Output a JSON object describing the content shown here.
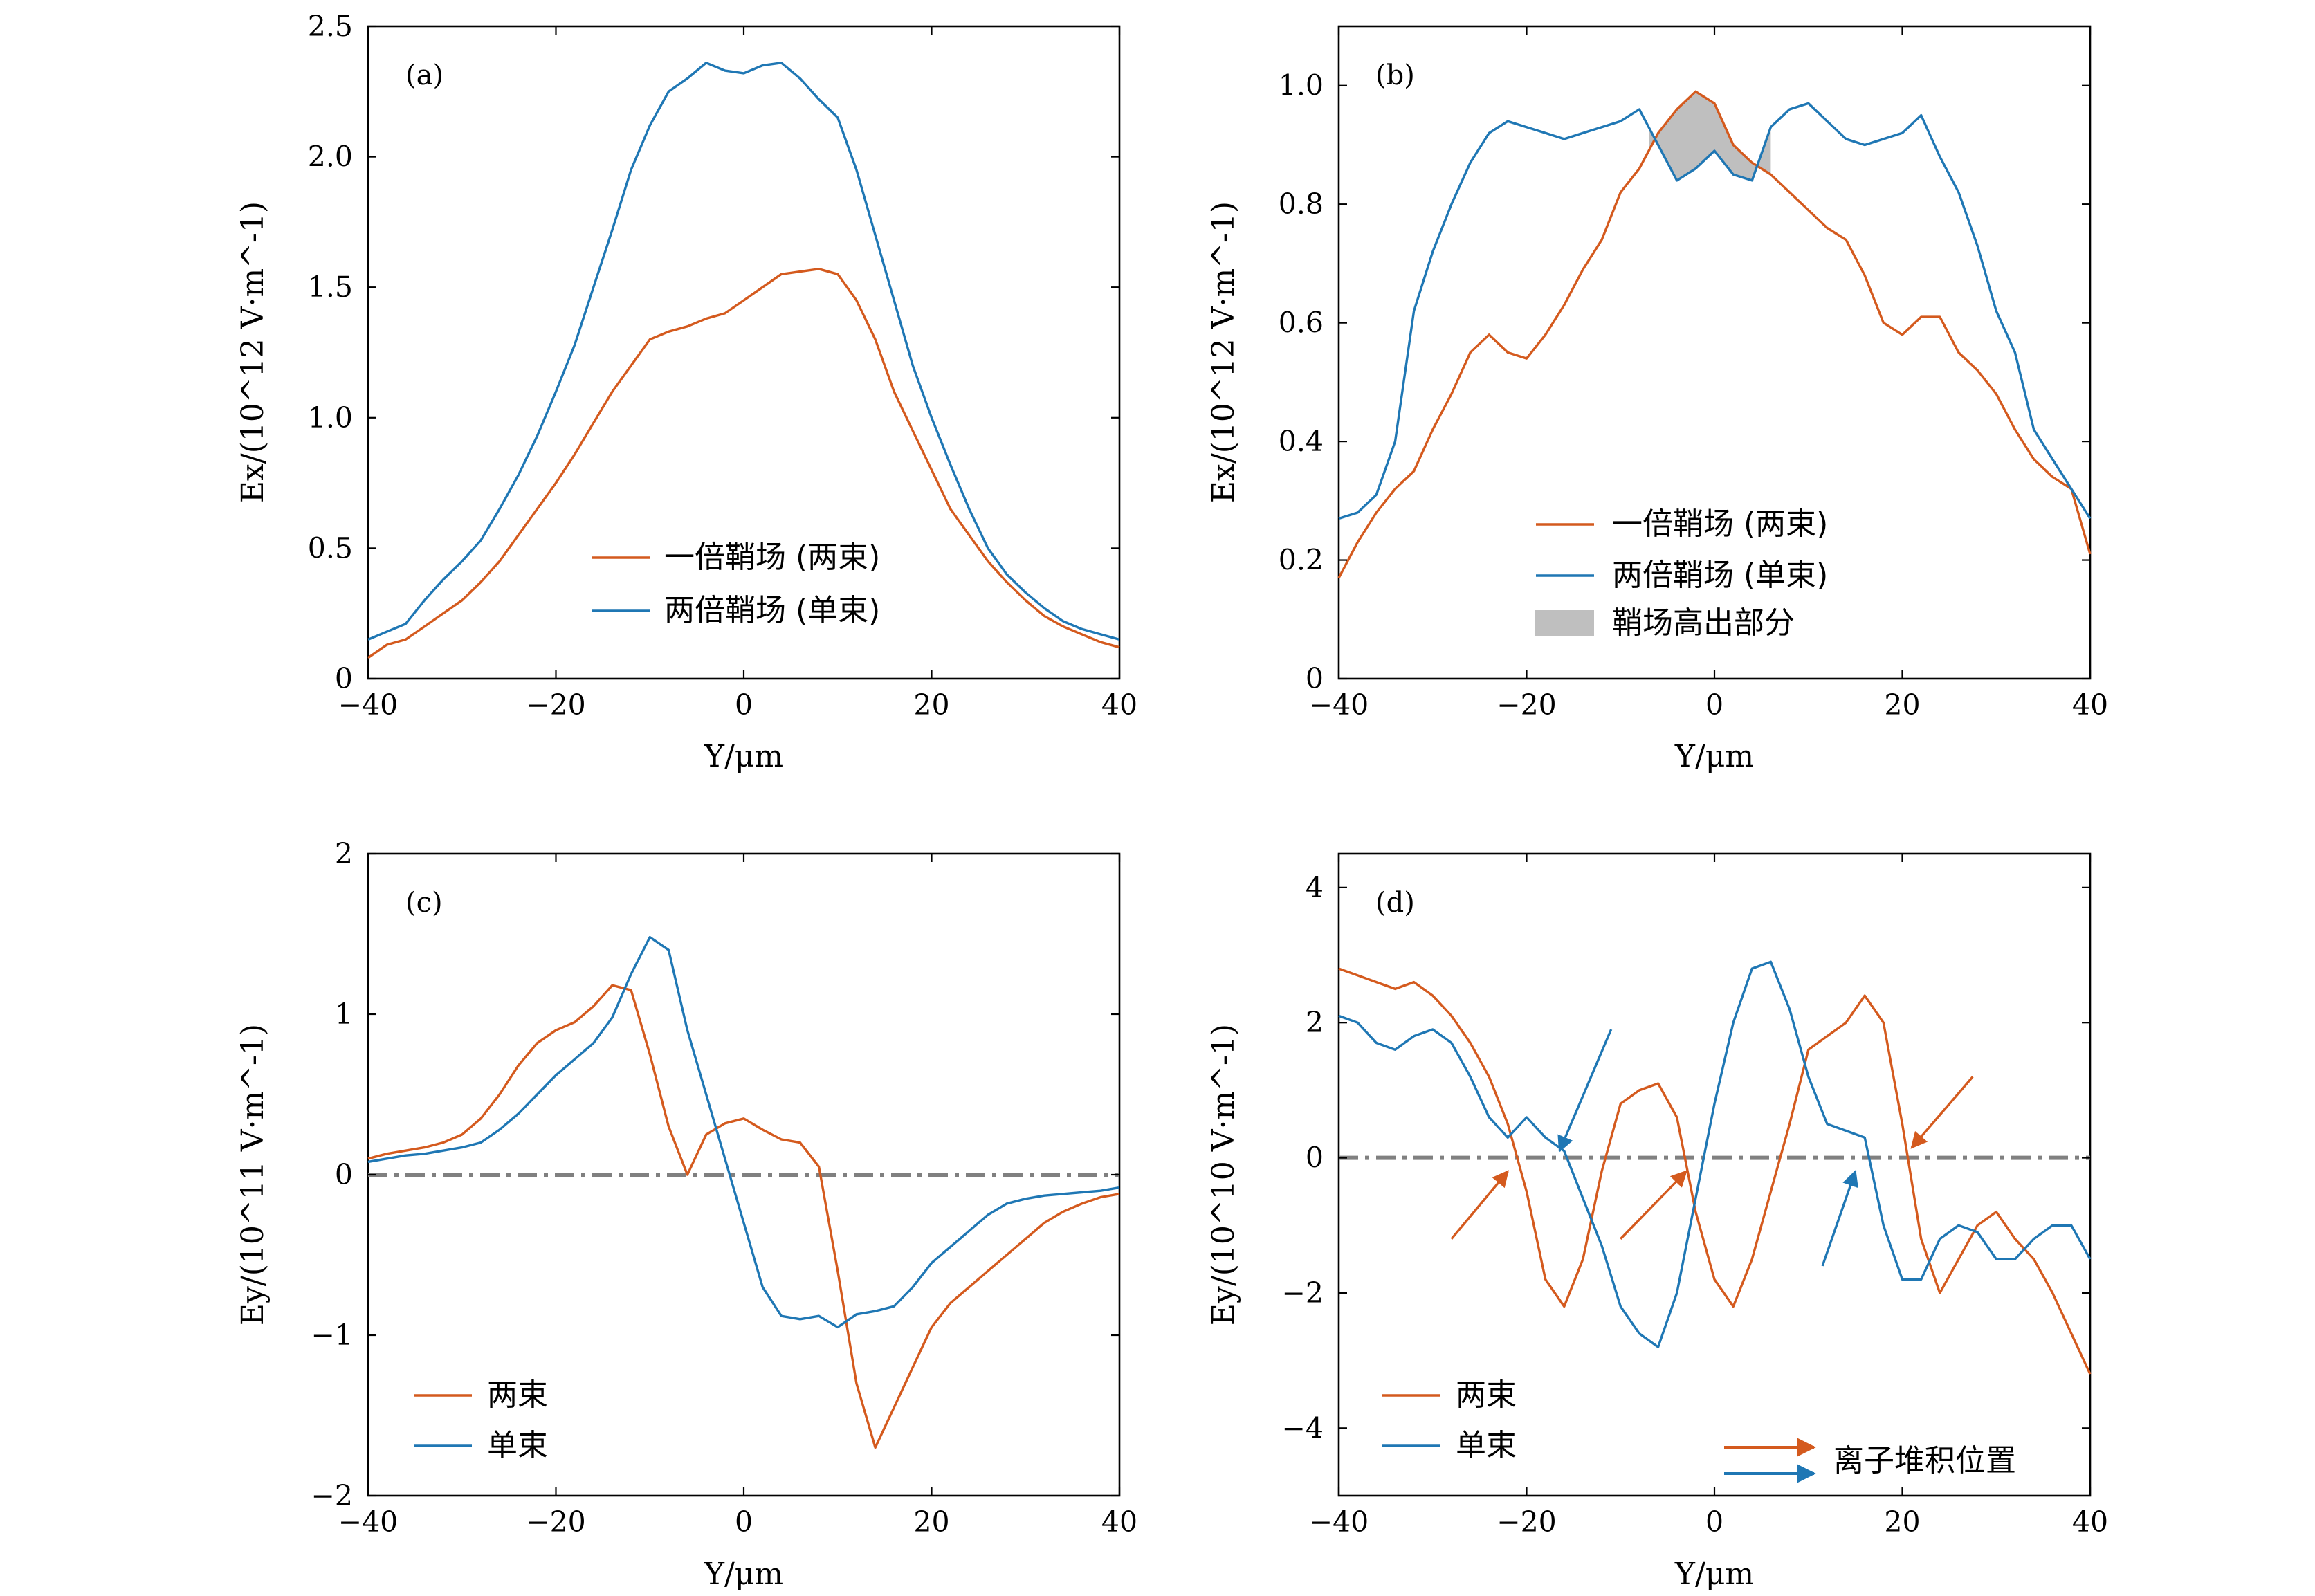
{
  "colors": {
    "orange": "#d45a1e",
    "blue": "#1f77b4",
    "fill": "#bfbfbf",
    "zero": "#808080"
  },
  "xlabel": "Y/μm",
  "chart_data": [
    {
      "panel": "(a)",
      "type": "line",
      "ylabel": "Ex/(10^12 V·m^-1)",
      "xlim": [
        -40,
        40
      ],
      "ylim": [
        0,
        2.5
      ],
      "xticks": [
        -40,
        -20,
        0,
        20,
        40
      ],
      "xtick_labels": [
        "−40",
        "−20",
        "0",
        "20",
        "40"
      ],
      "yticks": [
        0,
        0.5,
        1.0,
        1.5,
        2.0,
        2.5
      ],
      "ytick_labels": [
        "0",
        "0.5",
        "1.0",
        "1.5",
        "2.0",
        "2.5"
      ],
      "legend": [
        "一倍鞘场 (两束)",
        "两倍鞘场 (单束)"
      ],
      "series": [
        {
          "name": "一倍鞘场 (两束)",
          "color": "orange",
          "x": [
            -40,
            -38,
            -36,
            -34,
            -32,
            -30,
            -28,
            -26,
            -24,
            -22,
            -20,
            -18,
            -16,
            -14,
            -12,
            -10,
            -8,
            -6,
            -4,
            -2,
            0,
            2,
            4,
            6,
            8,
            10,
            12,
            14,
            16,
            18,
            20,
            22,
            24,
            26,
            28,
            30,
            32,
            34,
            36,
            38,
            40
          ],
          "values": [
            0.08,
            0.13,
            0.15,
            0.2,
            0.25,
            0.3,
            0.37,
            0.45,
            0.55,
            0.65,
            0.75,
            0.86,
            0.98,
            1.1,
            1.2,
            1.3,
            1.33,
            1.35,
            1.38,
            1.4,
            1.45,
            1.5,
            1.55,
            1.56,
            1.57,
            1.55,
            1.45,
            1.3,
            1.1,
            0.95,
            0.8,
            0.65,
            0.55,
            0.45,
            0.37,
            0.3,
            0.24,
            0.2,
            0.17,
            0.14,
            0.12
          ]
        },
        {
          "name": "两倍鞘场 (单束)",
          "color": "blue",
          "x": [
            -40,
            -38,
            -36,
            -34,
            -32,
            -30,
            -28,
            -26,
            -24,
            -22,
            -20,
            -18,
            -16,
            -14,
            -12,
            -10,
            -8,
            -6,
            -4,
            -2,
            0,
            2,
            4,
            6,
            8,
            10,
            12,
            14,
            16,
            18,
            20,
            22,
            24,
            26,
            28,
            30,
            32,
            34,
            36,
            38,
            40
          ],
          "values": [
            0.15,
            0.18,
            0.21,
            0.3,
            0.38,
            0.45,
            0.53,
            0.65,
            0.78,
            0.93,
            1.1,
            1.28,
            1.5,
            1.72,
            1.95,
            2.12,
            2.25,
            2.3,
            2.36,
            2.33,
            2.32,
            2.35,
            2.36,
            2.3,
            2.22,
            2.15,
            1.95,
            1.7,
            1.45,
            1.2,
            1.0,
            0.82,
            0.65,
            0.5,
            0.4,
            0.33,
            0.27,
            0.22,
            0.19,
            0.17,
            0.15
          ]
        }
      ]
    },
    {
      "panel": "(b)",
      "type": "line",
      "ylabel": "Ex/(10^12 V·m^-1)",
      "xlim": [
        -40,
        40
      ],
      "ylim": [
        0,
        1.1
      ],
      "xticks": [
        -40,
        -20,
        0,
        20,
        40
      ],
      "xtick_labels": [
        "−40",
        "−20",
        "0",
        "20",
        "40"
      ],
      "yticks": [
        0,
        0.2,
        0.4,
        0.6,
        0.8,
        1.0
      ],
      "ytick_labels": [
        "0",
        "0.2",
        "0.4",
        "0.6",
        "0.8",
        "1.0"
      ],
      "legend": [
        "一倍鞘场 (两束)",
        "两倍鞘场 (单束)",
        "鞘场高出部分"
      ],
      "fill_between": {
        "x_range": [
          -7,
          6
        ],
        "label": "鞘场高出部分"
      },
      "series": [
        {
          "name": "一倍鞘场 (两束)",
          "color": "orange",
          "x": [
            -40,
            -38,
            -36,
            -34,
            -32,
            -30,
            -28,
            -26,
            -24,
            -22,
            -20,
            -18,
            -16,
            -14,
            -12,
            -10,
            -8,
            -6,
            -4,
            -2,
            0,
            2,
            4,
            6,
            8,
            10,
            12,
            14,
            16,
            18,
            20,
            22,
            24,
            26,
            28,
            30,
            32,
            34,
            36,
            38,
            40
          ],
          "values": [
            0.17,
            0.23,
            0.28,
            0.32,
            0.35,
            0.42,
            0.48,
            0.55,
            0.58,
            0.55,
            0.54,
            0.58,
            0.63,
            0.69,
            0.74,
            0.82,
            0.86,
            0.92,
            0.96,
            0.99,
            0.97,
            0.9,
            0.87,
            0.85,
            0.82,
            0.79,
            0.76,
            0.74,
            0.68,
            0.6,
            0.58,
            0.61,
            0.61,
            0.55,
            0.52,
            0.48,
            0.42,
            0.37,
            0.34,
            0.32,
            0.21
          ]
        },
        {
          "name": "两倍鞘场 (单束)",
          "color": "blue",
          "x": [
            -40,
            -38,
            -36,
            -34,
            -32,
            -30,
            -28,
            -26,
            -24,
            -22,
            -20,
            -18,
            -16,
            -14,
            -12,
            -10,
            -8,
            -6,
            -4,
            -2,
            0,
            2,
            4,
            6,
            8,
            10,
            12,
            14,
            16,
            18,
            20,
            22,
            24,
            26,
            28,
            30,
            32,
            34,
            36,
            38,
            40
          ],
          "values": [
            0.27,
            0.28,
            0.31,
            0.4,
            0.62,
            0.72,
            0.8,
            0.87,
            0.92,
            0.94,
            0.93,
            0.92,
            0.91,
            0.92,
            0.93,
            0.94,
            0.96,
            0.9,
            0.84,
            0.86,
            0.89,
            0.85,
            0.84,
            0.93,
            0.96,
            0.97,
            0.94,
            0.91,
            0.9,
            0.91,
            0.92,
            0.95,
            0.88,
            0.82,
            0.73,
            0.62,
            0.55,
            0.42,
            0.37,
            0.32,
            0.27
          ]
        }
      ]
    },
    {
      "panel": "(c)",
      "type": "line",
      "ylabel": "Ey/(10^11 V·m^-1)",
      "xlim": [
        -40,
        40
      ],
      "ylim": [
        -2,
        2
      ],
      "xticks": [
        -40,
        -20,
        0,
        20,
        40
      ],
      "xtick_labels": [
        "−40",
        "−20",
        "0",
        "20",
        "40"
      ],
      "yticks": [
        -2,
        -1,
        0,
        1,
        2
      ],
      "ytick_labels": [
        "−2",
        "−1",
        "0",
        "1",
        "2"
      ],
      "zero_line": 0,
      "legend": [
        "两束",
        "单束"
      ],
      "series": [
        {
          "name": "两束",
          "color": "orange",
          "x": [
            -40,
            -38,
            -36,
            -34,
            -32,
            -30,
            -28,
            -26,
            -24,
            -22,
            -20,
            -18,
            -16,
            -14,
            -12,
            -10,
            -8,
            -6,
            -4,
            -2,
            0,
            2,
            4,
            6,
            8,
            10,
            12,
            14,
            16,
            18,
            20,
            22,
            24,
            26,
            28,
            30,
            32,
            34,
            36,
            38,
            40
          ],
          "values": [
            0.1,
            0.13,
            0.15,
            0.17,
            0.2,
            0.25,
            0.35,
            0.5,
            0.68,
            0.82,
            0.9,
            0.95,
            1.05,
            1.18,
            1.15,
            0.75,
            0.3,
            0.0,
            0.25,
            0.32,
            0.35,
            0.28,
            0.22,
            0.2,
            0.05,
            -0.6,
            -1.3,
            -1.7,
            -1.45,
            -1.2,
            -0.95,
            -0.8,
            -0.7,
            -0.6,
            -0.5,
            -0.4,
            -0.3,
            -0.23,
            -0.18,
            -0.14,
            -0.12
          ]
        },
        {
          "name": "单束",
          "color": "blue",
          "x": [
            -40,
            -38,
            -36,
            -34,
            -32,
            -30,
            -28,
            -26,
            -24,
            -22,
            -20,
            -18,
            -16,
            -14,
            -12,
            -10,
            -8,
            -6,
            -4,
            -2,
            0,
            2,
            4,
            6,
            8,
            10,
            12,
            14,
            16,
            18,
            20,
            22,
            24,
            26,
            28,
            30,
            32,
            34,
            36,
            38,
            40
          ],
          "values": [
            0.08,
            0.1,
            0.12,
            0.13,
            0.15,
            0.17,
            0.2,
            0.28,
            0.38,
            0.5,
            0.62,
            0.72,
            0.82,
            0.98,
            1.25,
            1.48,
            1.4,
            0.9,
            0.5,
            0.1,
            -0.3,
            -0.7,
            -0.88,
            -0.9,
            -0.88,
            -0.95,
            -0.87,
            -0.85,
            -0.82,
            -0.7,
            -0.55,
            -0.45,
            -0.35,
            -0.25,
            -0.18,
            -0.15,
            -0.13,
            -0.12,
            -0.11,
            -0.1,
            -0.08
          ]
        }
      ]
    },
    {
      "panel": "(d)",
      "type": "line",
      "ylabel": "Ey/(10^10 V·m^-1)",
      "xlim": [
        -40,
        40
      ],
      "ylim": [
        -5,
        4.5
      ],
      "xticks": [
        -40,
        -20,
        0,
        20,
        40
      ],
      "xtick_labels": [
        "−40",
        "−20",
        "0",
        "20",
        "40"
      ],
      "yticks": [
        -4,
        -2,
        0,
        2,
        4
      ],
      "ytick_labels": [
        "−4",
        "−2",
        "0",
        "2",
        "4"
      ],
      "zero_line": 0,
      "legend": [
        "两束",
        "单束"
      ],
      "arrow_legend": "离子堆积位置",
      "annotations": [
        {
          "type": "arrow",
          "color": "orange",
          "target": [
            -22,
            -0.2
          ],
          "tail": [
            -28,
            -1.2
          ]
        },
        {
          "type": "arrow",
          "color": "orange",
          "target": [
            -3,
            -0.2
          ],
          "tail": [
            -10,
            -1.2
          ]
        },
        {
          "type": "arrow",
          "color": "orange",
          "target": [
            21,
            0.15
          ],
          "tail": [
            27.5,
            1.2
          ]
        },
        {
          "type": "arrow",
          "color": "blue",
          "target": [
            -16.5,
            0.1
          ],
          "tail": [
            -11,
            1.9
          ]
        },
        {
          "type": "arrow",
          "color": "blue",
          "target": [
            15,
            -0.2
          ],
          "tail": [
            11.5,
            -1.6
          ]
        }
      ],
      "series": [
        {
          "name": "两束",
          "color": "orange",
          "x": [
            -40,
            -38,
            -36,
            -34,
            -32,
            -30,
            -28,
            -26,
            -24,
            -22,
            -20,
            -18,
            -16,
            -14,
            -12,
            -10,
            -8,
            -6,
            -4,
            -2,
            0,
            2,
            4,
            6,
            8,
            10,
            12,
            14,
            16,
            18,
            20,
            22,
            24,
            26,
            28,
            30,
            32,
            34,
            36,
            38,
            40
          ],
          "values": [
            2.8,
            2.7,
            2.6,
            2.5,
            2.6,
            2.4,
            2.1,
            1.7,
            1.2,
            0.5,
            -0.5,
            -1.8,
            -2.2,
            -1.5,
            -0.2,
            0.8,
            1.0,
            1.1,
            0.6,
            -0.8,
            -1.8,
            -2.2,
            -1.5,
            -0.5,
            0.5,
            1.6,
            1.8,
            2.0,
            2.4,
            2.0,
            0.5,
            -1.2,
            -2.0,
            -1.5,
            -1.0,
            -0.8,
            -1.2,
            -1.5,
            -2.0,
            -2.6,
            -3.2
          ]
        },
        {
          "name": "单束",
          "color": "blue",
          "x": [
            -40,
            -38,
            -36,
            -34,
            -32,
            -30,
            -28,
            -26,
            -24,
            -22,
            -20,
            -18,
            -16,
            -14,
            -12,
            -10,
            -8,
            -6,
            -4,
            -2,
            0,
            2,
            4,
            6,
            8,
            10,
            12,
            14,
            16,
            18,
            20,
            22,
            24,
            26,
            28,
            30,
            32,
            34,
            36,
            38,
            40
          ],
          "values": [
            2.1,
            2.0,
            1.7,
            1.6,
            1.8,
            1.9,
            1.7,
            1.2,
            0.6,
            0.3,
            0.6,
            0.3,
            0.1,
            -0.6,
            -1.3,
            -2.2,
            -2.6,
            -2.8,
            -2.0,
            -0.6,
            0.8,
            2.0,
            2.8,
            2.9,
            2.2,
            1.2,
            0.5,
            0.4,
            0.3,
            -1.0,
            -1.8,
            -1.8,
            -1.2,
            -1.0,
            -1.1,
            -1.5,
            -1.5,
            -1.2,
            -1.0,
            -1.0,
            -1.5
          ]
        }
      ]
    }
  ]
}
